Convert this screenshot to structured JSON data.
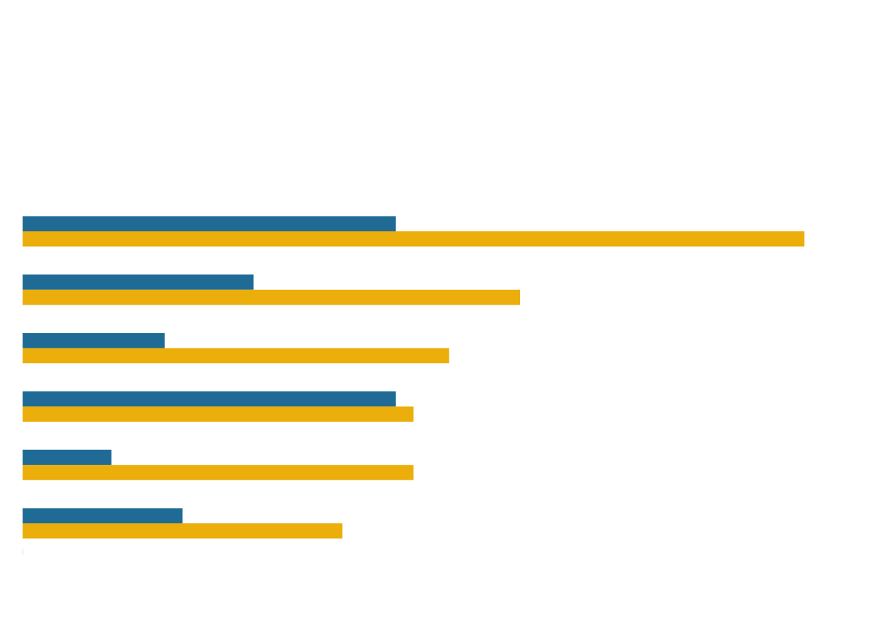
{
  "chart_data": {
    "type": "bar",
    "orientation": "horizontal",
    "title": "",
    "xlabel": "",
    "ylabel": "",
    "categories": [
      "",
      "",
      "",
      "",
      "",
      ""
    ],
    "series": [
      {
        "values": [
          21,
          13,
          8,
          21,
          5,
          9
        ],
        "color": "#1f6b96"
      },
      {
        "values": [
          44,
          28,
          24,
          22,
          22,
          18
        ],
        "color": "#ebae0a"
      }
    ],
    "xlim": [
      0,
      44
    ],
    "grid": false,
    "legend": "none"
  }
}
